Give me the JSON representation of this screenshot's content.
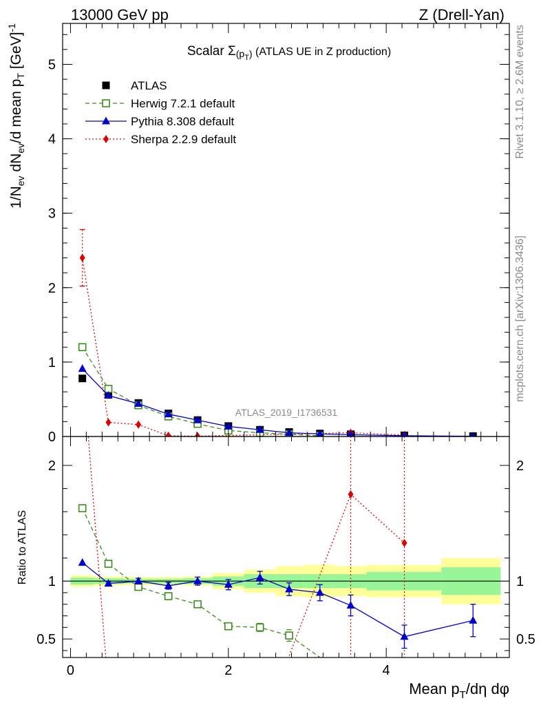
{
  "header": {
    "left": "13000 GeV pp",
    "right": "Z (Drell-Yan)"
  },
  "side_labels": {
    "rivet": "Rivet 3.1.10, ≥ 2.6M events",
    "mcplots": "mcplots.cern.ch [arXiv:1306.3436]"
  },
  "watermark": "ATLAS_2019_I1736531",
  "colors": {
    "atlas": "#000000",
    "herwig": "#3a8c1a",
    "pythia": "#0000cc",
    "sherpa": "#e00000",
    "band_inner": "#98f598",
    "band_outer": "#ffff99"
  },
  "chart_data": [
    {
      "type": "scatter",
      "panel": "main",
      "title": "Scalar Σ(p_T) (ATLAS UE in Z production)",
      "title_parts": {
        "pre": "Scalar ",
        "sigma": "Σ",
        "sub": "(p",
        "subsub": "T",
        "close": ")",
        "post": " (ATLAS UE in Z production)"
      },
      "ylabel": "1/N_ev dN_ev/d mean p_T [GeV]^-1",
      "ylabel_parts": {
        "a": "1/N",
        "a_sub": "ev",
        "b": " dN",
        "b_sub": "ev",
        "c": "/d mean p",
        "c_sub": "T",
        "d": " [GeV]",
        "d_sup": "-1"
      },
      "xlim": [
        -0.1,
        5.56
      ],
      "ylim": [
        0,
        5.55
      ],
      "yticks": [
        0,
        1,
        2,
        3,
        4,
        5
      ],
      "ytick_labels": [
        "0",
        "1",
        "2",
        "3",
        "4",
        "5"
      ],
      "legend_position": "top-left",
      "series": [
        {
          "name": "ATLAS",
          "style": "atlas",
          "x": [
            0.15,
            0.48,
            0.86,
            1.24,
            1.61,
            2.0,
            2.4,
            2.77,
            3.16,
            3.55,
            4.23,
            5.1
          ],
          "y": [
            0.78,
            0.56,
            0.45,
            0.31,
            0.22,
            0.14,
            0.09,
            0.06,
            0.04,
            0.03,
            0.015,
            0.005
          ]
        },
        {
          "name": "Herwig 7.2.1 default",
          "style": "herwig",
          "x": [
            0.15,
            0.48,
            0.86,
            1.24,
            1.61,
            2.0,
            2.4,
            2.77,
            3.16
          ],
          "y": [
            1.2,
            0.64,
            0.42,
            0.27,
            0.17,
            0.08,
            0.05,
            0.03,
            0.01
          ]
        },
        {
          "name": "Pythia 8.308 default",
          "style": "pythia",
          "x": [
            0.15,
            0.48,
            0.86,
            1.24,
            1.61,
            2.0,
            2.4,
            2.77,
            3.16,
            3.55,
            4.23,
            5.1
          ],
          "y": [
            0.91,
            0.55,
            0.44,
            0.3,
            0.22,
            0.135,
            0.09,
            0.05,
            0.035,
            0.024,
            0.01,
            0.003
          ]
        },
        {
          "name": "Sherpa 2.2.9 default",
          "style": "sherpa",
          "x": [
            0.15,
            0.48,
            0.86,
            1.24,
            1.61,
            3.55,
            4.23
          ],
          "y": [
            2.4,
            0.19,
            0.16,
            0.01,
            0.005,
            0.05,
            0.02
          ],
          "yerr": [
            0.38,
            0,
            0,
            0,
            0,
            0,
            0
          ]
        }
      ]
    },
    {
      "type": "scatter",
      "panel": "ratio",
      "xlabel": "Mean p_T/dη dφ",
      "xlabel_parts": {
        "a": "Mean p",
        "sub": "T",
        "b": "/dη dφ"
      },
      "ylabel": "Ratio to ATLAS",
      "xlim": [
        -0.1,
        5.56
      ],
      "ylim": [
        0.34,
        2.25
      ],
      "xticks": [
        0,
        2,
        4
      ],
      "xtick_labels": [
        "0",
        "2",
        "4"
      ],
      "yticks": [
        0.5,
        1,
        2
      ],
      "ytick_labels": [
        "0.5",
        "1",
        "2"
      ],
      "reference_line": 1,
      "bands": {
        "edges": [
          0,
          0.3,
          0.67,
          1.05,
          1.43,
          1.8,
          2.2,
          2.6,
          2.95,
          3.35,
          3.75,
          4.7,
          5.45
        ],
        "inner": [
          0.03,
          0.025,
          0.02,
          0.02,
          0.025,
          0.04,
          0.06,
          0.06,
          0.06,
          0.06,
          0.08,
          0.12
        ],
        "outer": [
          0.05,
          0.04,
          0.035,
          0.035,
          0.04,
          0.07,
          0.1,
          0.13,
          0.14,
          0.13,
          0.14,
          0.2
        ]
      },
      "series": [
        {
          "name": "Herwig 7.2.1 default",
          "style": "herwig",
          "x": [
            0.15,
            0.48,
            0.86,
            1.24,
            1.61,
            2.0,
            2.4,
            2.77,
            3.16
          ],
          "y": [
            1.63,
            1.15,
            0.95,
            0.87,
            0.8,
            0.61,
            0.6,
            0.53,
            0.34
          ],
          "yerr": [
            0,
            0,
            0,
            0,
            0,
            0.025,
            0.035,
            0.05,
            0
          ]
        },
        {
          "name": "Pythia 8.308 default",
          "style": "pythia",
          "x": [
            0.15,
            0.48,
            0.86,
            1.24,
            1.61,
            2.0,
            2.4,
            2.77,
            3.16,
            3.55,
            4.23,
            5.1
          ],
          "y": [
            1.16,
            0.98,
            1.0,
            0.96,
            1.0,
            0.97,
            1.03,
            0.93,
            0.9,
            0.79,
            0.52,
            0.66
          ],
          "yerr": [
            0,
            0.015,
            0.025,
            0.03,
            0.035,
            0.045,
            0.055,
            0.055,
            0.07,
            0.09,
            0.1,
            0.14
          ]
        },
        {
          "name": "Sherpa 2.2.9 default",
          "style": "sherpa",
          "x": [
            0.48,
            2.6,
            3.55,
            4.23
          ],
          "y": [
            0.34,
            0.34,
            1.75,
            1.33
          ],
          "yerr": [
            0,
            0,
            0,
            0
          ],
          "long_err_x": [
            3.55,
            4.23
          ]
        }
      ]
    }
  ]
}
